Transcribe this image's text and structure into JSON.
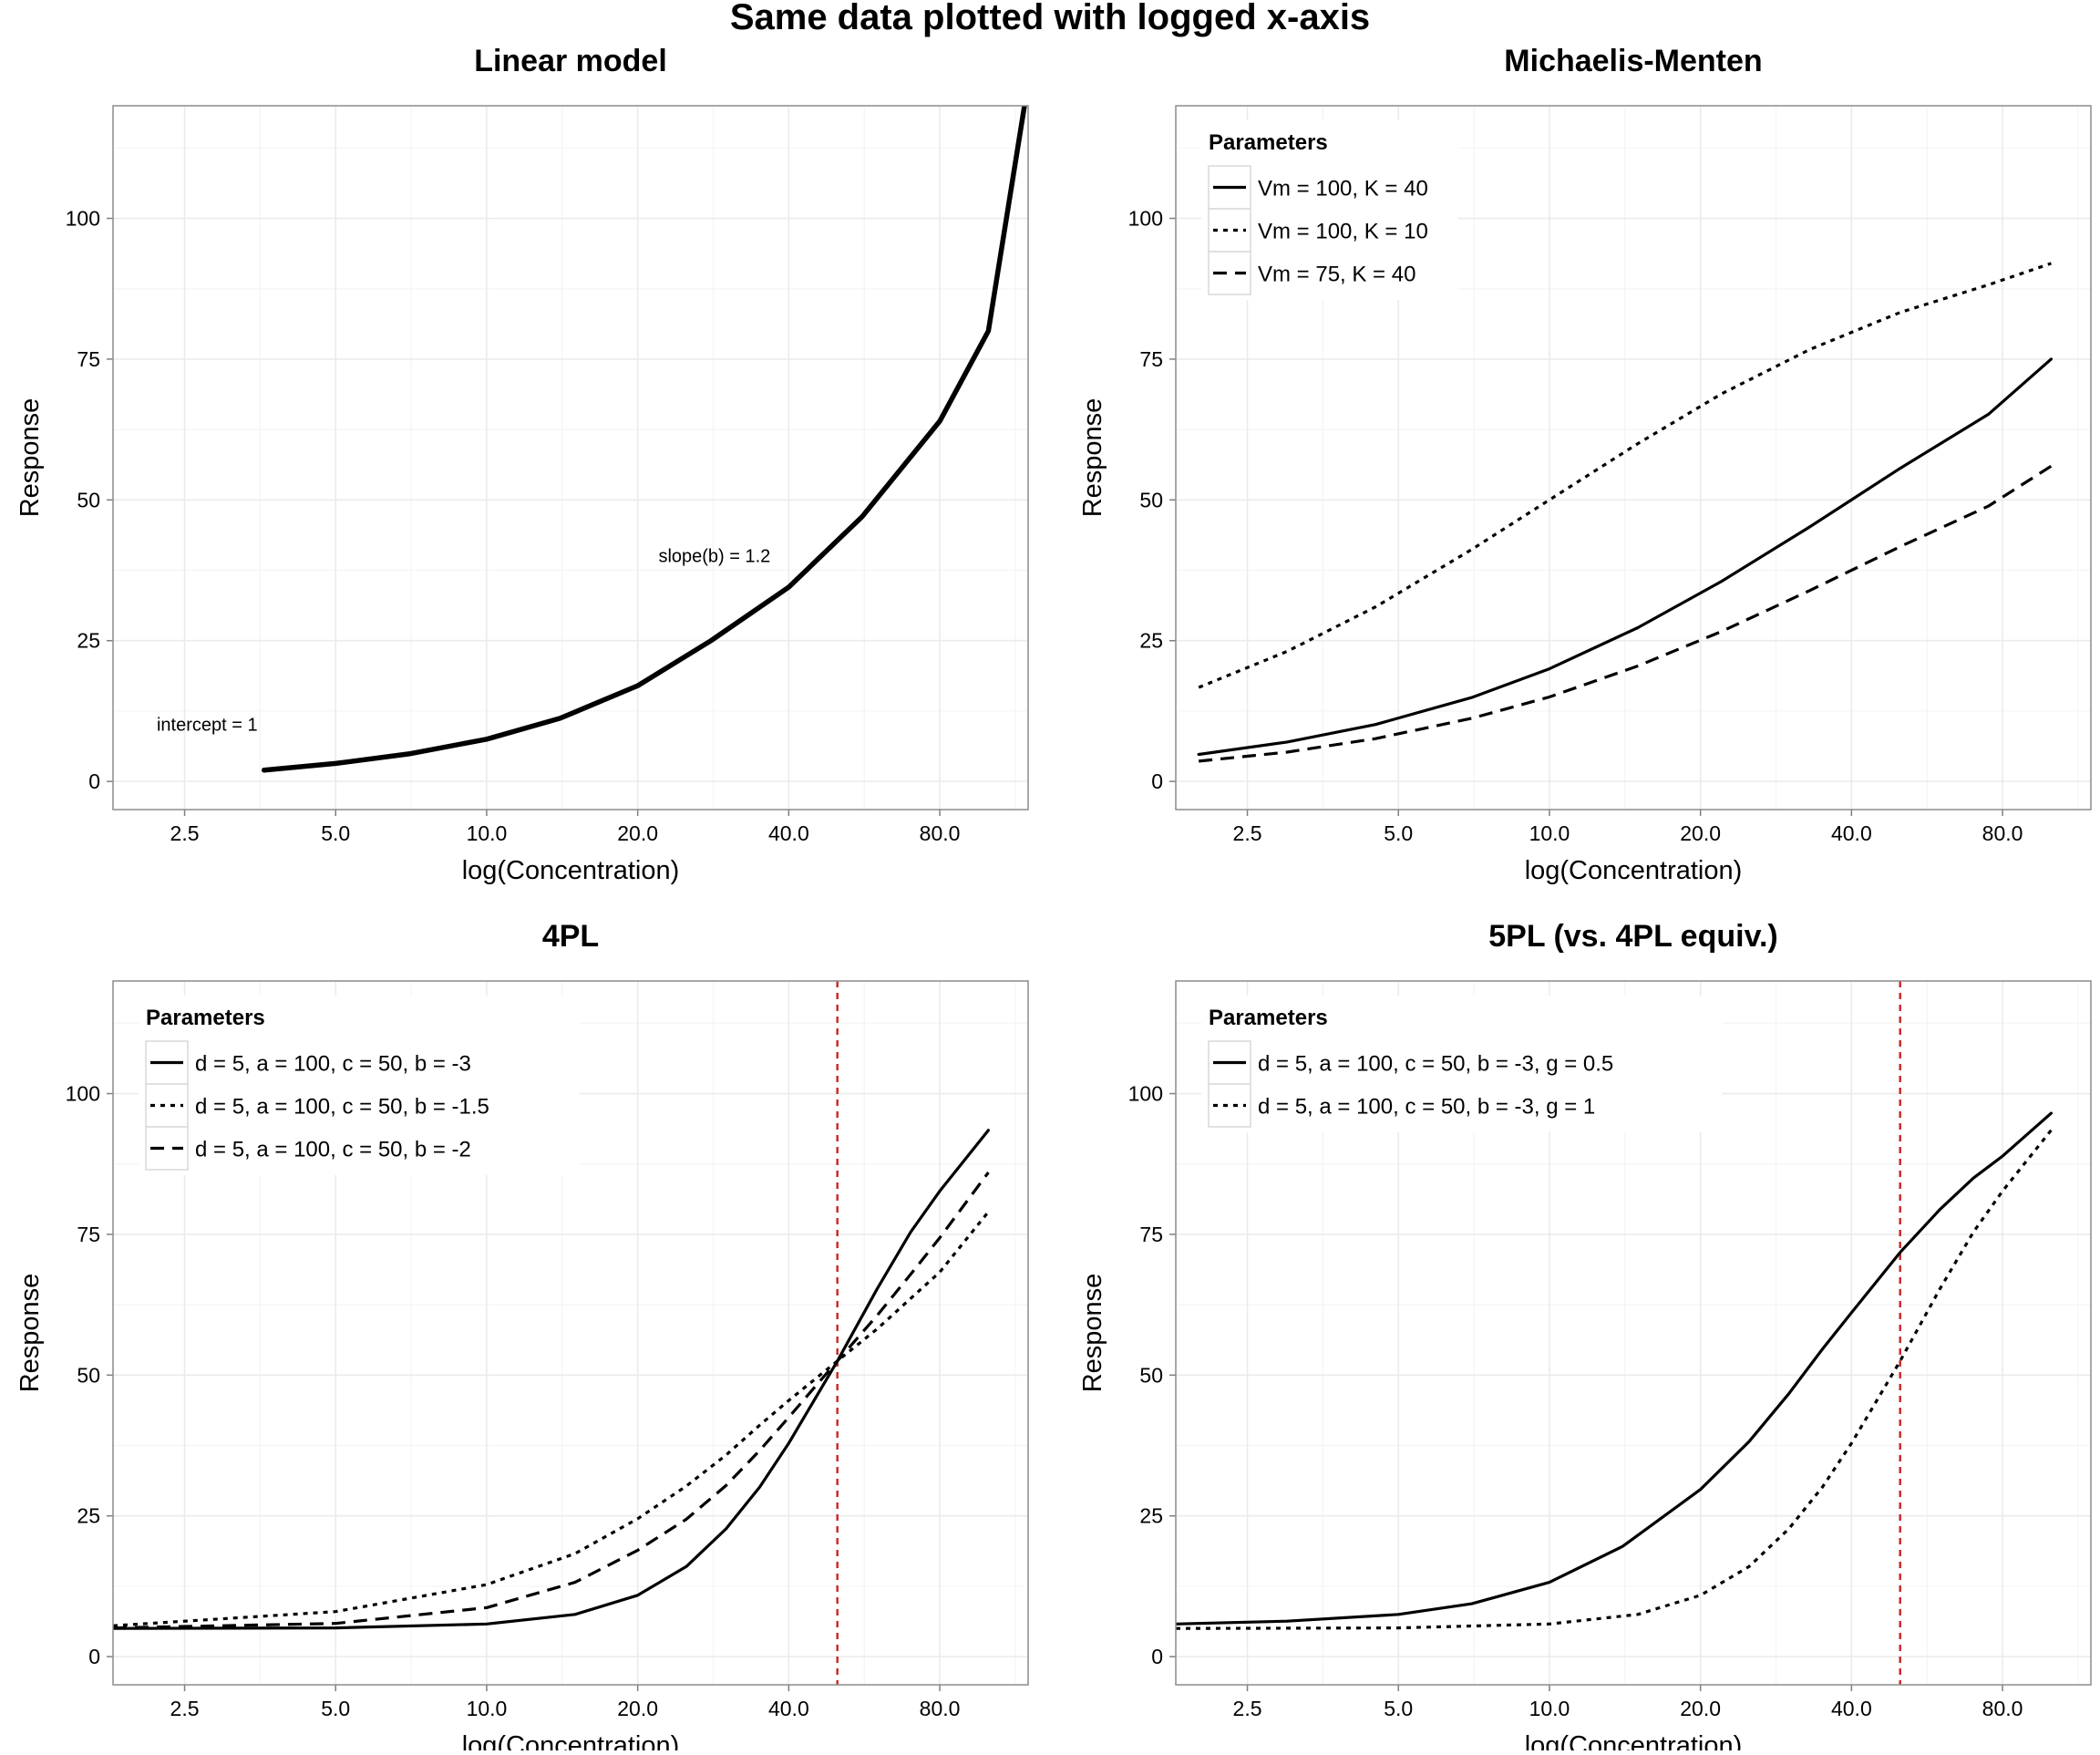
{
  "page_title": "Same data plotted with logged x-axis",
  "colors": {
    "curve": "#000000",
    "reference_line": "#cc2b2b",
    "grid": "#ebebeb",
    "border": "#8c8c8c"
  },
  "chart_data": [
    {
      "type": "line",
      "title": "Linear model",
      "xlabel": "log(Concentration)",
      "ylabel": "Response",
      "x_scale": "log",
      "xlim": [
        1.8,
        120
      ],
      "ylim": [
        -5,
        120
      ],
      "x_ticks": [
        2.5,
        5,
        10,
        20,
        40,
        80
      ],
      "x_tick_labels": [
        "2.5",
        "5.0",
        "10.0",
        "20.0",
        "40.0",
        "80.0"
      ],
      "y_ticks": [
        0,
        25,
        50,
        75,
        100
      ],
      "y_tick_labels": [
        "0",
        "25",
        "50",
        "75",
        "100"
      ],
      "legend": null,
      "annotations": [
        {
          "text": "intercept = 1",
          "x": 2.2,
          "y": 9
        },
        {
          "text": "slope(b) = 1.2",
          "x": 22,
          "y": 39
        }
      ],
      "series": [
        {
          "style": "solid",
          "thick": true,
          "x": [
            3.6,
            5,
            7,
            10,
            14,
            20,
            28,
            40,
            56,
            80,
            100,
            118
          ],
          "y": [
            2,
            3.2,
            4.9,
            7.5,
            11.2,
            17,
            25,
            34.5,
            47,
            64,
            80,
            120
          ]
        }
      ]
    },
    {
      "type": "line",
      "title": "Michaelis-Menten",
      "xlabel": "log(Concentration)",
      "ylabel": "Response",
      "x_scale": "log",
      "xlim": [
        1.8,
        120
      ],
      "ylim": [
        -5,
        120
      ],
      "x_ticks": [
        2.5,
        5,
        10,
        20,
        40,
        80
      ],
      "x_tick_labels": [
        "2.5",
        "5.0",
        "10.0",
        "20.0",
        "40.0",
        "80.0"
      ],
      "y_ticks": [
        0,
        25,
        50,
        75,
        100
      ],
      "y_tick_labels": [
        "0",
        "25",
        "50",
        "75",
        "100"
      ],
      "legend": {
        "title": "Parameters",
        "position": "top-left"
      },
      "series": [
        {
          "name": "Vm = 100, K = 40",
          "style": "solid",
          "x": [
            2,
            3,
            4.5,
            7,
            10,
            15,
            22,
            33,
            50,
            75,
            100
          ],
          "y": [
            4.8,
            7,
            10.1,
            14.9,
            20,
            27.3,
            35.5,
            45.2,
            55.6,
            65.2,
            75
          ]
        },
        {
          "name": "Vm = 100, K = 10",
          "style": "dotted",
          "x": [
            2,
            3,
            4.5,
            7,
            10,
            15,
            22,
            33,
            50,
            75,
            100
          ],
          "y": [
            16.7,
            23.1,
            31,
            41.2,
            50,
            60,
            68.8,
            76.7,
            83.3,
            88.2,
            92
          ]
        },
        {
          "name": "Vm = 75, K = 40",
          "style": "dashed",
          "x": [
            2,
            3,
            4.5,
            7,
            10,
            15,
            22,
            33,
            50,
            75,
            100
          ],
          "y": [
            3.6,
            5.2,
            7.6,
            11.2,
            15,
            20.5,
            26.6,
            33.9,
            41.7,
            48.9,
            56
          ]
        }
      ]
    },
    {
      "type": "line",
      "title": "4PL",
      "xlabel": "log(Concentration)",
      "ylabel": "Response",
      "x_scale": "log",
      "xlim": [
        1.8,
        120
      ],
      "ylim": [
        -5,
        120
      ],
      "x_ticks": [
        2.5,
        5,
        10,
        20,
        40,
        80
      ],
      "x_tick_labels": [
        "2.5",
        "5.0",
        "10.0",
        "20.0",
        "40.0",
        "80.0"
      ],
      "y_ticks": [
        0,
        25,
        50,
        75,
        100
      ],
      "y_tick_labels": [
        "0",
        "25",
        "50",
        "75",
        "100"
      ],
      "legend": {
        "title": "Parameters",
        "position": "top-left"
      },
      "reference_line": {
        "x": 50,
        "style": "dashed",
        "color": "red"
      },
      "series": [
        {
          "name": "d = 5, a = 100, c = 50, b = -3",
          "style": "solid",
          "x": [
            1.8,
            5,
            10,
            15,
            20,
            25,
            30,
            35,
            40,
            45,
            50,
            60,
            70,
            80,
            100
          ],
          "y": [
            5,
            5.1,
            5.8,
            7.5,
            10.9,
            16,
            22.7,
            30.1,
            37.9,
            45.6,
            52.5,
            65.3,
            75.4,
            82.7,
            93.5
          ]
        },
        {
          "name": "d = 5, a = 100, c = 50, b = -1.5",
          "style": "dotted",
          "x": [
            1.8,
            5,
            10,
            15,
            20,
            25,
            30,
            35,
            40,
            45,
            50,
            60,
            70,
            80,
            100
          ],
          "y": [
            5.5,
            8,
            12.8,
            18.3,
            24.5,
            30.3,
            35.8,
            41.1,
            45.5,
            49.2,
            52.5,
            58.2,
            63.6,
            68.3,
            79
          ]
        },
        {
          "name": "d = 5, a = 100, c = 50, b = -2",
          "style": "dashed",
          "x": [
            1.8,
            5,
            10,
            15,
            20,
            25,
            30,
            35,
            40,
            45,
            50,
            60,
            70,
            80,
            100
          ],
          "y": [
            5.1,
            5.9,
            8.7,
            13.2,
            18.9,
            24.4,
            30.4,
            36.6,
            42.5,
            47.8,
            52.5,
            60.6,
            67.9,
            74.4,
            86
          ]
        }
      ]
    },
    {
      "type": "line",
      "title": "5PL (vs. 4PL equiv.)",
      "xlabel": "log(Concentration)",
      "ylabel": "Response",
      "x_scale": "log",
      "xlim": [
        1.8,
        120
      ],
      "ylim": [
        -5,
        120
      ],
      "x_ticks": [
        2.5,
        5,
        10,
        20,
        40,
        80
      ],
      "x_tick_labels": [
        "2.5",
        "5.0",
        "10.0",
        "20.0",
        "40.0",
        "80.0"
      ],
      "y_ticks": [
        0,
        25,
        50,
        75,
        100
      ],
      "y_tick_labels": [
        "0",
        "25",
        "50",
        "75",
        "100"
      ],
      "legend": {
        "title": "Parameters",
        "position": "top-left"
      },
      "reference_line": {
        "x": 50,
        "style": "dashed",
        "color": "red"
      },
      "series": [
        {
          "name": "d = 5, a = 100, c = 50, b = -3, g = 0.5",
          "style": "solid",
          "x": [
            1.8,
            3,
            5,
            7,
            10,
            14,
            20,
            25,
            30,
            35,
            40,
            50,
            60,
            70,
            80,
            100
          ],
          "y": [
            5.8,
            6.3,
            7.5,
            9.4,
            13.2,
            19.6,
            29.7,
            38.2,
            46.7,
            54.6,
            61.1,
            71.8,
            79.4,
            85,
            88.9,
            96.5
          ]
        },
        {
          "name": "d = 5, a = 100, c = 50, b = -3, g = 1",
          "style": "dotted",
          "x": [
            1.8,
            5,
            10,
            15,
            20,
            25,
            30,
            35,
            40,
            45,
            50,
            60,
            70,
            80,
            100
          ],
          "y": [
            5,
            5.1,
            5.8,
            7.5,
            10.9,
            16,
            22.7,
            30.1,
            37.9,
            45.6,
            52.5,
            65.3,
            75.4,
            82.7,
            93.5
          ]
        }
      ]
    }
  ]
}
